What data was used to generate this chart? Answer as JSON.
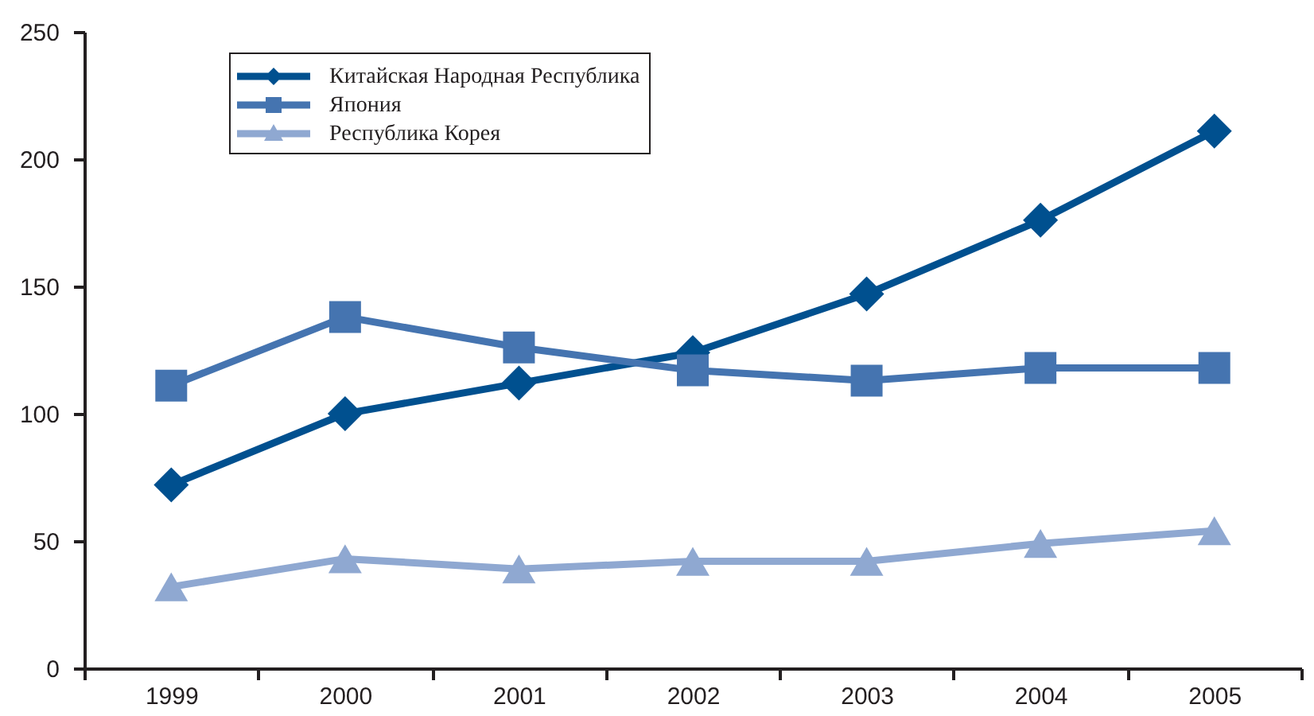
{
  "chart_data": {
    "type": "line",
    "categories": [
      "1999",
      "2000",
      "2001",
      "2002",
      "2003",
      "2004",
      "2005"
    ],
    "series": [
      {
        "name": "Китайская Народная Республика",
        "color": "#00508f",
        "marker": "diamond",
        "values": [
          72,
          100,
          112,
          124,
          147,
          176,
          211
        ]
      },
      {
        "name": "Япония",
        "color": "#4574b0",
        "marker": "square",
        "values": [
          111,
          138,
          126,
          117,
          113,
          118,
          118
        ]
      },
      {
        "name": "Республика Корея",
        "color": "#8fa8d1",
        "marker": "triangle",
        "values": [
          32,
          43,
          39,
          42,
          42,
          49,
          54
        ]
      }
    ],
    "ylim": [
      0,
      250
    ],
    "yticks": [
      0,
      50,
      100,
      150,
      200,
      250
    ],
    "grid": false,
    "legend": "top left"
  }
}
